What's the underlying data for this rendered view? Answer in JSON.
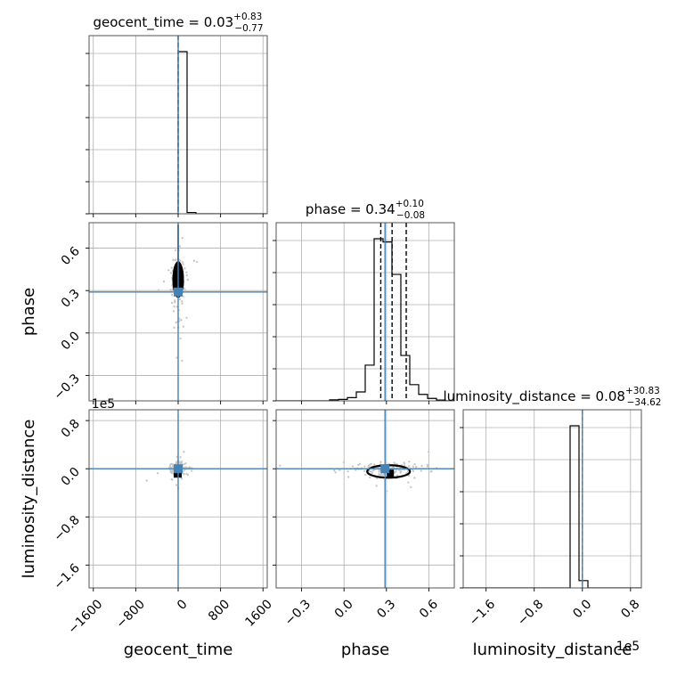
{
  "chart_data": {
    "type": "corner",
    "parameters": [
      "geocent_time",
      "phase",
      "luminosity_distance"
    ],
    "axis_labels": {
      "geocent_time": "geocent_time",
      "phase": "phase",
      "luminosity_distance": "luminosity_distance"
    },
    "ranges": {
      "geocent_time": [
        -1680,
        1680
      ],
      "phase": [
        -0.48,
        0.78
      ],
      "luminosity_distance": [
        -198000,
        98000
      ]
    },
    "ticks": {
      "geocent_time": [
        {
          "v": -1600,
          "label": "−1600"
        },
        {
          "v": -800,
          "label": "−800"
        },
        {
          "v": 0,
          "label": "0"
        },
        {
          "v": 800,
          "label": "800"
        },
        {
          "v": 1600,
          "label": "1600"
        }
      ],
      "phase": [
        {
          "v": -0.3,
          "label": "−0.3"
        },
        {
          "v": 0.0,
          "label": "0.0"
        },
        {
          "v": 0.3,
          "label": "0.3"
        },
        {
          "v": 0.6,
          "label": "0.6"
        }
      ],
      "luminosity_distance": [
        {
          "v": -160000,
          "label": "−1.6"
        },
        {
          "v": -80000,
          "label": "−0.8"
        },
        {
          "v": 0,
          "label": "0.0"
        },
        {
          "v": 80000,
          "label": "0.8"
        }
      ]
    },
    "offset_text": "1e5",
    "titles": [
      {
        "param": "geocent_time",
        "prefix": "geocent_time = 0.03",
        "plus": "+0.83",
        "minus": "−0.77"
      },
      {
        "param": "phase",
        "prefix": "phase = 0.34",
        "plus": "+0.10",
        "minus": "−0.08"
      },
      {
        "param": "luminosity_distance",
        "prefix": "luminosity_distance = 0.08",
        "plus": "+30.83",
        "minus": "−34.62"
      }
    ],
    "truths": {
      "geocent_time": 0,
      "phase": 0.29,
      "luminosity_distance": 0
    },
    "truth_color": "#4682b4",
    "quantiles": {
      "geocent_time": [
        0.03
      ],
      "phase": [
        0.26,
        0.34,
        0.44
      ],
      "luminosity_distance": [
        0.08
      ]
    },
    "histograms": {
      "geocent_time": {
        "edges": [
          -1680,
          -1512,
          -1344,
          -1176,
          -1008,
          -840,
          -672,
          -504,
          -336,
          -168,
          0,
          168,
          336,
          504,
          672,
          840,
          1008,
          1176,
          1344,
          1512,
          1680
        ],
        "counts": [
          0,
          0,
          0,
          0,
          0,
          0,
          0,
          0,
          0,
          0,
          100,
          0.8,
          0,
          0,
          0,
          0,
          0,
          0,
          0,
          0
        ],
        "ymax": 100,
        "ylabel_ticks": 6
      },
      "phase": {
        "edges": [
          -0.48,
          -0.417,
          -0.354,
          -0.291,
          -0.228,
          -0.165,
          -0.102,
          -0.039,
          0.024,
          0.087,
          0.15,
          0.213,
          0.276,
          0.339,
          0.402,
          0.465,
          0.528,
          0.591,
          0.654,
          0.717,
          0.78
        ],
        "counts": [
          0,
          0,
          0,
          0,
          0,
          0,
          0.6,
          0.9,
          2.0,
          5.5,
          22.0,
          100,
          98.0,
          78.0,
          28.0,
          10.0,
          4.0,
          1.5,
          0.5,
          0
        ],
        "ymax": 100
      },
      "luminosity_distance": {
        "edges": [
          -198000,
          -183200,
          -168400,
          -153600,
          -138800,
          -124000,
          -109200,
          -94400,
          -79600,
          -64800,
          -50000,
          -35200,
          -20400,
          -5600,
          9200,
          24000,
          38800,
          53600,
          68400,
          83200,
          98000
        ],
        "counts": [
          0,
          0,
          0,
          0,
          0,
          0,
          0,
          0,
          0,
          0,
          0,
          0,
          100,
          4.5,
          0,
          0,
          0,
          0,
          0,
          0
        ],
        "ymax": 100
      }
    },
    "samples_color": "#c8c8c8",
    "contour_color": "#000000",
    "grid": true
  }
}
